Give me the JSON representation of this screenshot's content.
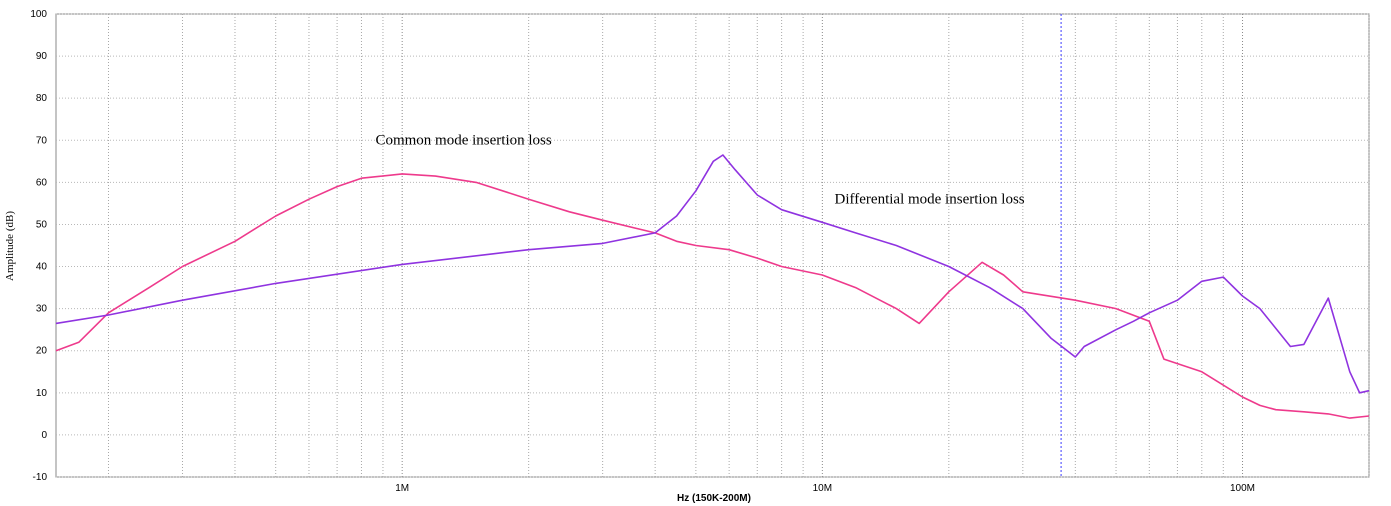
{
  "chart_data": {
    "type": "line",
    "title": "",
    "xlabel": "Hz  (150K-200M)",
    "ylabel": "Amplitude (dB)",
    "x_scale": "log",
    "xlim": [
      150000,
      200000000
    ],
    "ylim": [
      -10,
      100
    ],
    "y_ticks": [
      -10,
      0,
      10,
      20,
      30,
      40,
      50,
      60,
      70,
      80,
      90,
      100
    ],
    "x_tick_labels": [
      {
        "value": 1000000,
        "label": "1M"
      },
      {
        "value": 10000000,
        "label": "10M"
      },
      {
        "value": 100000000,
        "label": "100M"
      }
    ],
    "grid": true,
    "marker_line_x": 37000000,
    "series": [
      {
        "name": "",
        "color": "#ee3a8c",
        "points": [
          [
            150000,
            20
          ],
          [
            170000,
            22
          ],
          [
            200000,
            29
          ],
          [
            250000,
            35
          ],
          [
            300000,
            40
          ],
          [
            400000,
            46
          ],
          [
            500000,
            52
          ],
          [
            600000,
            56
          ],
          [
            700000,
            59
          ],
          [
            800000,
            61
          ],
          [
            1000000,
            62
          ],
          [
            1200000,
            61.5
          ],
          [
            1500000,
            60
          ],
          [
            2000000,
            56
          ],
          [
            2500000,
            53
          ],
          [
            3000000,
            51
          ],
          [
            4000000,
            48
          ],
          [
            4500000,
            46
          ],
          [
            5000000,
            45
          ],
          [
            6000000,
            44
          ],
          [
            7000000,
            42
          ],
          [
            8000000,
            40
          ],
          [
            10000000,
            38
          ],
          [
            12000000,
            35
          ],
          [
            15000000,
            30
          ],
          [
            17000000,
            26.5
          ],
          [
            20000000,
            34
          ],
          [
            24000000,
            41
          ],
          [
            27000000,
            38
          ],
          [
            30000000,
            34
          ],
          [
            40000000,
            32
          ],
          [
            50000000,
            30
          ],
          [
            60000000,
            27
          ],
          [
            65000000,
            18
          ],
          [
            80000000,
            15
          ],
          [
            100000000,
            9
          ],
          [
            110000000,
            7
          ],
          [
            120000000,
            6
          ],
          [
            140000000,
            5.5
          ],
          [
            160000000,
            5
          ],
          [
            180000000,
            4
          ],
          [
            200000000,
            4.5
          ]
        ]
      },
      {
        "name": "",
        "color": "#8f33e0",
        "points": [
          [
            150000,
            26.5
          ],
          [
            200000,
            28.5
          ],
          [
            300000,
            32
          ],
          [
            500000,
            36
          ],
          [
            1000000,
            40.5
          ],
          [
            2000000,
            44
          ],
          [
            3000000,
            45.5
          ],
          [
            4000000,
            48
          ],
          [
            4500000,
            52
          ],
          [
            5000000,
            58
          ],
          [
            5500000,
            65
          ],
          [
            5800000,
            66.5
          ],
          [
            6200000,
            63
          ],
          [
            7000000,
            57
          ],
          [
            8000000,
            53.5
          ],
          [
            10000000,
            50.5
          ],
          [
            12000000,
            48
          ],
          [
            15000000,
            45
          ],
          [
            20000000,
            40
          ],
          [
            25000000,
            35
          ],
          [
            30000000,
            30
          ],
          [
            35000000,
            23
          ],
          [
            40000000,
            18.5
          ],
          [
            42000000,
            21
          ],
          [
            50000000,
            25
          ],
          [
            55000000,
            27
          ],
          [
            60000000,
            29
          ],
          [
            70000000,
            32
          ],
          [
            80000000,
            36.5
          ],
          [
            90000000,
            37.5
          ],
          [
            100000000,
            33
          ],
          [
            110000000,
            30
          ],
          [
            130000000,
            21
          ],
          [
            140000000,
            21.5
          ],
          [
            160000000,
            32.5
          ],
          [
            180000000,
            15
          ],
          [
            190000000,
            10
          ],
          [
            200000000,
            10.5
          ]
        ]
      }
    ],
    "annotations": [
      {
        "text": "Common mode insertion loss",
        "x": 1400000,
        "y": 69
      },
      {
        "text": "Differential mode insertion loss",
        "x": 18000000,
        "y": 55
      }
    ]
  }
}
